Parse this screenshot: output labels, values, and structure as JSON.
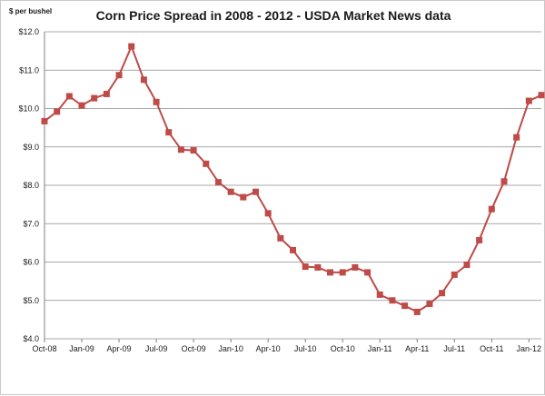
{
  "chart_data": {
    "type": "line",
    "title": "Corn Price Spread in 2008 - 2012 - USDA Market News data",
    "ylabel": "$ per bushel",
    "xlabel": "",
    "ylim": [
      4.0,
      12.0
    ],
    "y_ticks": [
      "$4.0",
      "$5.0",
      "$6.0",
      "$7.0",
      "$8.0",
      "$9.0",
      "$10.0",
      "$11.0",
      "$12.0"
    ],
    "x_tick_labels": [
      "Oct-08",
      "Jan-09",
      "Apr-09",
      "Jul-09",
      "Oct-09",
      "Jan-10",
      "Apr-10",
      "Jul-10",
      "Oct-10",
      "Jan-11",
      "Apr-11",
      "Jul-11",
      "Oct-11",
      "Jan-12"
    ],
    "grid": true,
    "legend": "none",
    "series": [
      {
        "color": "#be4b48",
        "marker": "square",
        "x": [
          "Oct-08",
          "Nov-08",
          "Dec-08",
          "Jan-09",
          "Feb-09",
          "Mar-09",
          "Apr-09",
          "May-09",
          "Jun-09",
          "Jul-09",
          "Aug-09",
          "Sep-09",
          "Oct-09",
          "Nov-09",
          "Dec-09",
          "Jan-10",
          "Feb-10",
          "Mar-10",
          "Apr-10",
          "May-10",
          "Jun-10",
          "Jul-10",
          "Aug-10",
          "Sep-10",
          "Oct-10",
          "Nov-10",
          "Dec-10",
          "Jan-11",
          "Feb-11",
          "Mar-11",
          "Apr-11",
          "May-11",
          "Jun-11",
          "Jul-11",
          "Aug-11",
          "Sep-11",
          "Oct-11",
          "Nov-11",
          "Dec-11",
          "Jan-12",
          "Feb-12"
        ],
        "values": [
          9.67,
          9.92,
          10.32,
          10.08,
          10.27,
          10.38,
          10.87,
          11.62,
          10.75,
          10.17,
          9.38,
          8.93,
          8.91,
          8.56,
          8.08,
          7.83,
          7.69,
          7.83,
          7.27,
          6.62,
          6.31,
          5.88,
          5.86,
          5.73,
          5.73,
          5.86,
          5.73,
          5.15,
          5.0,
          4.86,
          4.7,
          4.91,
          5.19,
          5.67,
          5.93,
          6.57,
          7.38,
          8.1,
          9.25,
          10.2,
          10.35
        ]
      }
    ]
  }
}
